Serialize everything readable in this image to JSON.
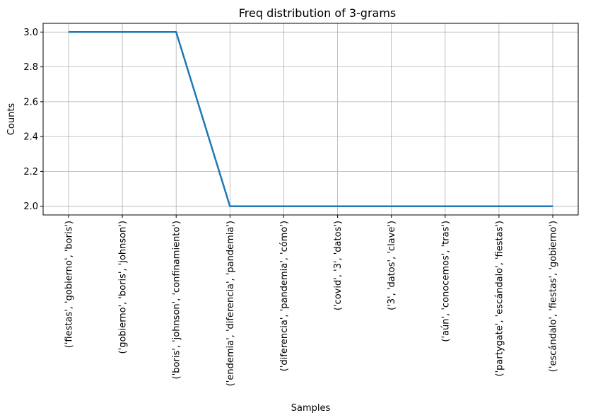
{
  "chart_data": {
    "type": "line",
    "title": "Freq distribution of 3-grams",
    "xlabel": "Samples",
    "ylabel": "Counts",
    "categories": [
      "('fiestas', 'gobierno', 'boris')",
      "('gobierno', 'boris', 'johnson')",
      "('boris', 'johnson', 'confinamiento')",
      "('endemia', 'diferencia', 'pandemia')",
      "('diferencia', 'pandemia', 'cómo')",
      "('covid', '3', 'datos')",
      "('3', 'datos', 'clave')",
      "('aún', 'conocemos', 'tras')",
      "('partygate', 'escándalo', 'fiestas')",
      "('escándalo', 'fiestas', 'gobierno')"
    ],
    "values": [
      3,
      3,
      3,
      2,
      2,
      2,
      2,
      2,
      2,
      2
    ],
    "ylim": [
      1.95,
      3.05
    ],
    "yticks": [
      "2.0",
      "2.2",
      "2.4",
      "2.6",
      "2.8",
      "3.0"
    ],
    "grid": true,
    "line_color": "#1f77b4",
    "grid_color": "#b0b0b0"
  }
}
